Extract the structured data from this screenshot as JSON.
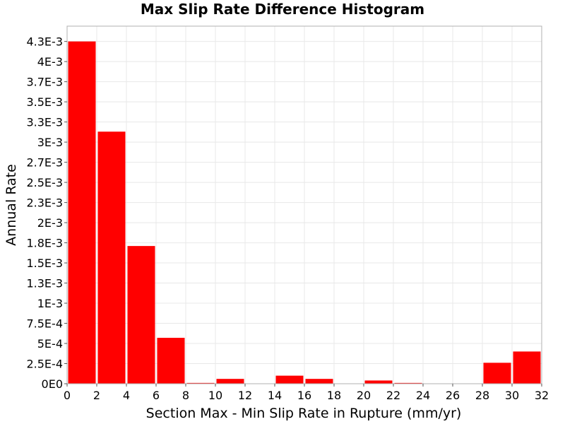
{
  "chart_data": {
    "type": "bar",
    "title": "Max Slip Rate Difference Histogram",
    "xlabel": "Section Max - Min Slip Rate in Rupture (mm/yr)",
    "ylabel": "Annual Rate",
    "bin_width": 2,
    "x": [
      1,
      3,
      5,
      7,
      9,
      11,
      13,
      15,
      17,
      19,
      21,
      23,
      25,
      27,
      29,
      31
    ],
    "values": [
      0.00425,
      0.00313,
      0.00171,
      0.00057,
      1e-05,
      6e-05,
      0.0,
      0.0001,
      6e-05,
      0.0,
      4e-05,
      1e-05,
      0.0,
      0.0,
      0.00026,
      0.0004
    ],
    "xlim": [
      0,
      32
    ],
    "ylim": [
      0,
      0.00444
    ],
    "x_ticks": [
      0,
      2,
      4,
      6,
      8,
      10,
      12,
      14,
      16,
      18,
      20,
      22,
      24,
      26,
      28,
      30,
      32
    ],
    "x_tick_labels": [
      "0",
      "2",
      "4",
      "6",
      "8",
      "10",
      "12",
      "14",
      "16",
      "18",
      "20",
      "22",
      "24",
      "26",
      "28",
      "30",
      "32"
    ],
    "y_ticks": [
      0,
      0.00025,
      0.0005,
      0.00075,
      0.001,
      0.00125,
      0.0015,
      0.00175,
      0.002,
      0.00225,
      0.0025,
      0.00275,
      0.003,
      0.00325,
      0.0035,
      0.00375,
      0.004,
      0.00425
    ],
    "y_tick_labels": [
      "0E0",
      "2.5E-4",
      "5E-4",
      "7.5E-4",
      "1E-3",
      "1.3E-3",
      "1.5E-3",
      "1.8E-3",
      "2E-3",
      "2.3E-3",
      "2.5E-3",
      "2.7E-3",
      "3E-3",
      "3.3E-3",
      "3.5E-3",
      "3.7E-3",
      "4E-3",
      "4.3E-3"
    ],
    "grid": true,
    "bar_color": "#ff0000",
    "grid_color": "#e8e8e8",
    "frame_color": "#b0b0b0"
  }
}
